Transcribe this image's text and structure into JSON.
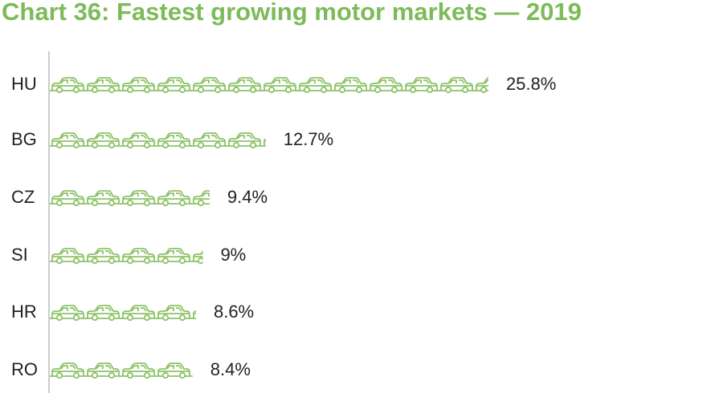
{
  "chart_data": {
    "type": "pictograph",
    "title": "Chart 36: Fastest growing motor markets — 2019",
    "categories": [
      "HU",
      "BG",
      "CZ",
      "SI",
      "HR",
      "RO"
    ],
    "values": [
      25.8,
      12.7,
      9.4,
      9,
      8.6,
      8.4
    ],
    "value_labels": [
      "25.8%",
      "12.7%",
      "9.4%",
      "9%",
      "8.6%",
      "8.4%"
    ],
    "color": "#8cc266"
  }
}
